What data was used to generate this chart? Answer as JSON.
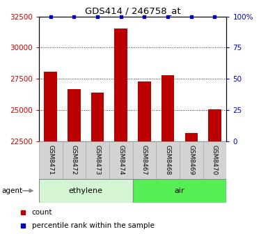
{
  "title": "GDS414 / 246758_at",
  "samples": [
    "GSM8471",
    "GSM8472",
    "GSM8473",
    "GSM8474",
    "GSM8467",
    "GSM8468",
    "GSM8469",
    "GSM8470"
  ],
  "counts": [
    28100,
    26700,
    26400,
    31500,
    27300,
    27800,
    23200,
    25050
  ],
  "percentiles": [
    100,
    100,
    100,
    100,
    100,
    100,
    100,
    100
  ],
  "groups": [
    {
      "label": "ethylene",
      "start": 0,
      "end": 4,
      "color": "#d4f5d4"
    },
    {
      "label": "air",
      "start": 4,
      "end": 8,
      "color": "#55ee55"
    }
  ],
  "ymin": 22500,
  "ymax": 32500,
  "yticks": [
    22500,
    25000,
    27500,
    30000,
    32500
  ],
  "ytick_labels": [
    "22500",
    "25000",
    "27500",
    "30000",
    "32500"
  ],
  "right_yticks": [
    0,
    25,
    50,
    75,
    100
  ],
  "right_ytick_labels": [
    "0",
    "25",
    "50",
    "75",
    "100%"
  ],
  "bar_color": "#bb0000",
  "dot_color": "#0000bb",
  "legend_count_color": "#bb0000",
  "legend_pct_color": "#0000bb",
  "left_tick_color": "#cc0000",
  "right_tick_color": "#0000cc",
  "agent_label": "agent",
  "background_color": "#ffffff",
  "grid_color": "#333333",
  "bar_width": 0.55,
  "sample_box_color": "#d3d3d3",
  "sample_box_edge": "#aaaaaa"
}
